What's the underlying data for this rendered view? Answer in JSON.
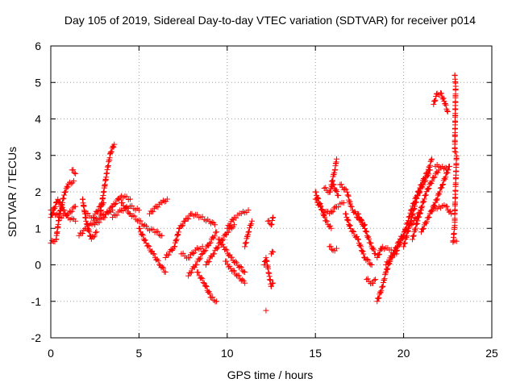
{
  "chart_data": {
    "type": "scatter",
    "title": "Day 105 of 2019, Sidereal Day-to-day VTEC variation (SDTVAR) for receiver p014",
    "xlabel": "GPS time / hours",
    "ylabel": "SDTVAR / TECUs",
    "xlim": [
      0,
      25
    ],
    "ylim": [
      -2,
      6
    ],
    "xticks": [
      0,
      5,
      10,
      15,
      20,
      25
    ],
    "yticks": [
      -2,
      -1,
      0,
      1,
      2,
      3,
      4,
      5,
      6
    ],
    "grid": true,
    "marker": "plus",
    "color": "#ff0000",
    "segments": [
      {
        "name": "arc-01",
        "points": [
          [
            0.0,
            0.6
          ],
          [
            0.3,
            0.7
          ],
          [
            0.5,
            1.4
          ],
          [
            0.8,
            2.0
          ],
          [
            1.0,
            2.2
          ],
          [
            1.3,
            2.3
          ]
        ]
      },
      {
        "name": "arc-02",
        "points": [
          [
            0.0,
            1.3
          ],
          [
            0.4,
            1.8
          ],
          [
            0.7,
            1.5
          ],
          [
            1.0,
            1.3
          ],
          [
            1.4,
            1.2
          ]
        ]
      },
      {
        "name": "arc-03",
        "points": [
          [
            0.0,
            1.5
          ],
          [
            0.5,
            1.3
          ],
          [
            1.0,
            1.4
          ],
          [
            1.4,
            1.6
          ]
        ]
      },
      {
        "name": "arc-04",
        "points": [
          [
            1.2,
            2.6
          ],
          [
            1.4,
            2.5
          ]
        ]
      },
      {
        "name": "arc-05",
        "points": [
          [
            1.6,
            0.8
          ],
          [
            2.0,
            1.0
          ],
          [
            2.5,
            1.2
          ],
          [
            3.0,
            1.4
          ],
          [
            3.5,
            1.5
          ]
        ]
      },
      {
        "name": "arc-06",
        "points": [
          [
            1.8,
            1.8
          ],
          [
            2.0,
            1.2
          ],
          [
            2.3,
            0.7
          ],
          [
            2.6,
            0.9
          ]
        ]
      },
      {
        "name": "arc-07",
        "points": [
          [
            2.0,
            1.4
          ],
          [
            2.4,
            1.3
          ],
          [
            2.8,
            1.6
          ],
          [
            3.0,
            1.7
          ]
        ]
      },
      {
        "name": "arc-08",
        "points": [
          [
            2.8,
            1.4
          ],
          [
            3.0,
            2.0
          ],
          [
            3.2,
            2.6
          ],
          [
            3.4,
            3.1
          ],
          [
            3.6,
            3.3
          ]
        ]
      },
      {
        "name": "arc-09",
        "points": [
          [
            2.5,
            1.1
          ],
          [
            3.0,
            1.3
          ],
          [
            3.5,
            1.6
          ],
          [
            4.0,
            1.9
          ],
          [
            4.5,
            1.8
          ]
        ]
      },
      {
        "name": "arc-10",
        "points": [
          [
            3.5,
            1.3
          ],
          [
            4.0,
            1.5
          ],
          [
            4.5,
            1.6
          ],
          [
            5.0,
            1.5
          ]
        ]
      },
      {
        "name": "arc-11",
        "points": [
          [
            4.0,
            1.7
          ],
          [
            4.5,
            1.4
          ],
          [
            5.0,
            1.2
          ],
          [
            5.5,
            1.0
          ],
          [
            6.0,
            0.9
          ],
          [
            6.3,
            0.8
          ]
        ]
      },
      {
        "name": "arc-12",
        "points": [
          [
            5.0,
            1.0
          ],
          [
            5.4,
            0.6
          ],
          [
            5.8,
            0.3
          ],
          [
            6.2,
            0.0
          ],
          [
            6.5,
            -0.2
          ]
        ]
      },
      {
        "name": "arc-13",
        "points": [
          [
            5.6,
            1.4
          ],
          [
            6.0,
            1.6
          ],
          [
            6.3,
            1.7
          ],
          [
            6.6,
            1.8
          ]
        ]
      },
      {
        "name": "arc-14",
        "points": [
          [
            6.5,
            0.2
          ],
          [
            7.0,
            0.5
          ],
          [
            7.3,
            1.0
          ],
          [
            7.6,
            1.2
          ]
        ]
      },
      {
        "name": "arc-15",
        "points": [
          [
            7.4,
            0.3
          ],
          [
            7.8,
            0.2
          ],
          [
            8.2,
            0.4
          ],
          [
            8.6,
            0.5
          ]
        ]
      },
      {
        "name": "arc-16",
        "points": [
          [
            7.6,
            1.2
          ],
          [
            8.0,
            1.4
          ],
          [
            8.5,
            1.3
          ],
          [
            9.0,
            1.2
          ],
          [
            9.3,
            1.1
          ]
        ]
      },
      {
        "name": "arc-17",
        "points": [
          [
            7.8,
            -0.3
          ],
          [
            8.2,
            0.0
          ],
          [
            8.6,
            0.3
          ],
          [
            9.0,
            0.6
          ],
          [
            9.4,
            0.9
          ]
        ]
      },
      {
        "name": "arc-18",
        "points": [
          [
            8.3,
            -0.2
          ],
          [
            8.7,
            -0.5
          ],
          [
            9.1,
            -0.9
          ],
          [
            9.4,
            -1.0
          ]
        ]
      },
      {
        "name": "arc-19",
        "points": [
          [
            8.8,
            0.0
          ],
          [
            9.2,
            0.3
          ],
          [
            9.6,
            0.6
          ],
          [
            10.0,
            0.9
          ],
          [
            10.4,
            1.1
          ]
        ]
      },
      {
        "name": "arc-20",
        "points": [
          [
            9.5,
            0.7
          ],
          [
            9.8,
            0.5
          ],
          [
            10.2,
            0.2
          ],
          [
            10.6,
            0.0
          ],
          [
            11.0,
            -0.2
          ]
        ]
      },
      {
        "name": "arc-21",
        "points": [
          [
            9.9,
            0.1
          ],
          [
            10.2,
            -0.1
          ],
          [
            10.6,
            -0.3
          ],
          [
            11.0,
            -0.5
          ]
        ]
      },
      {
        "name": "arc-22",
        "points": [
          [
            10.0,
            1.0
          ],
          [
            10.4,
            1.3
          ],
          [
            10.8,
            1.4
          ],
          [
            11.2,
            1.5
          ]
        ]
      },
      {
        "name": "arc-23",
        "points": [
          [
            11.0,
            0.5
          ],
          [
            11.2,
            0.9
          ],
          [
            11.4,
            1.2
          ]
        ]
      },
      {
        "name": "arc-24",
        "points": [
          [
            12.1,
            0.0
          ],
          [
            12.2,
            0.2
          ],
          [
            12.5,
            -0.6
          ],
          [
            12.6,
            -0.5
          ]
        ]
      },
      {
        "name": "arc-25",
        "points": [
          [
            12.3,
            1.2
          ],
          [
            12.5,
            1.1
          ],
          [
            12.6,
            1.3
          ]
        ]
      },
      {
        "name": "arc-26",
        "points": [
          [
            12.5,
            0.3
          ],
          [
            12.6,
            0.35
          ]
        ]
      },
      {
        "name": "arc-27",
        "points": [
          [
            12.2,
            -1.25
          ]
        ]
      },
      {
        "name": "arc-28",
        "points": [
          [
            15.0,
            1.8
          ],
          [
            15.4,
            1.5
          ],
          [
            15.8,
            1.4
          ],
          [
            16.2,
            1.6
          ],
          [
            16.6,
            1.7
          ]
        ]
      },
      {
        "name": "arc-29",
        "points": [
          [
            15.0,
            2.0
          ],
          [
            15.3,
            1.6
          ],
          [
            15.6,
            1.2
          ],
          [
            15.9,
            1.0
          ]
        ]
      },
      {
        "name": "arc-30",
        "points": [
          [
            15.5,
            2.1
          ],
          [
            15.8,
            2.0
          ],
          [
            16.0,
            2.2
          ],
          [
            16.3,
            1.9
          ]
        ]
      },
      {
        "name": "arc-31",
        "points": [
          [
            15.9,
            2.2
          ],
          [
            16.1,
            2.6
          ],
          [
            16.2,
            2.9
          ]
        ]
      },
      {
        "name": "arc-32",
        "points": [
          [
            15.8,
            0.5
          ],
          [
            16.0,
            0.4
          ],
          [
            16.2,
            0.45
          ]
        ]
      },
      {
        "name": "arc-33",
        "points": [
          [
            16.4,
            2.2
          ],
          [
            16.8,
            2.0
          ],
          [
            17.0,
            1.6
          ],
          [
            17.4,
            1.3
          ],
          [
            17.8,
            1.1
          ]
        ]
      },
      {
        "name": "arc-34",
        "points": [
          [
            16.7,
            1.4
          ],
          [
            17.0,
            1.0
          ],
          [
            17.4,
            0.7
          ],
          [
            17.8,
            0.2
          ],
          [
            18.2,
            0.0
          ]
        ]
      },
      {
        "name": "arc-35",
        "points": [
          [
            17.4,
            1.4
          ],
          [
            17.8,
            1.0
          ],
          [
            18.1,
            0.6
          ],
          [
            18.4,
            0.3
          ]
        ]
      },
      {
        "name": "arc-36",
        "points": [
          [
            17.9,
            -0.4
          ],
          [
            18.2,
            -0.5
          ],
          [
            18.4,
            -0.4
          ]
        ]
      },
      {
        "name": "arc-37",
        "points": [
          [
            18.5,
            -1.0
          ],
          [
            18.8,
            -0.6
          ],
          [
            19.0,
            -0.2
          ],
          [
            19.3,
            0.2
          ],
          [
            19.5,
            0.3
          ]
        ]
      },
      {
        "name": "arc-38",
        "points": [
          [
            18.5,
            0.2
          ],
          [
            18.8,
            0.5
          ],
          [
            19.2,
            0.4
          ],
          [
            19.6,
            0.3
          ]
        ]
      },
      {
        "name": "arc-39",
        "points": [
          [
            19.0,
            0.0
          ],
          [
            19.4,
            0.3
          ],
          [
            19.8,
            0.7
          ],
          [
            20.2,
            1.0
          ],
          [
            20.6,
            1.2
          ],
          [
            21.0,
            1.5
          ]
        ]
      },
      {
        "name": "arc-40",
        "points": [
          [
            19.5,
            0.3
          ],
          [
            20.0,
            0.8
          ],
          [
            20.5,
            1.6
          ],
          [
            21.0,
            2.2
          ],
          [
            21.4,
            2.6
          ],
          [
            21.6,
            2.9
          ]
        ]
      },
      {
        "name": "arc-41",
        "points": [
          [
            20.0,
            0.5
          ],
          [
            20.4,
            1.2
          ],
          [
            20.8,
            1.9
          ],
          [
            21.2,
            2.3
          ],
          [
            21.5,
            2.6
          ]
        ]
      },
      {
        "name": "arc-42",
        "points": [
          [
            20.5,
            0.7
          ],
          [
            20.9,
            1.4
          ],
          [
            21.3,
            2.0
          ],
          [
            21.7,
            2.4
          ],
          [
            22.0,
            2.6
          ]
        ]
      },
      {
        "name": "arc-43",
        "points": [
          [
            21.0,
            0.9
          ],
          [
            21.4,
            1.3
          ],
          [
            21.8,
            1.7
          ],
          [
            22.2,
            2.2
          ],
          [
            22.6,
            2.7
          ]
        ]
      },
      {
        "name": "arc-44",
        "points": [
          [
            21.8,
            2.7
          ],
          [
            22.2,
            2.7
          ],
          [
            22.5,
            2.6
          ]
        ]
      },
      {
        "name": "arc-45",
        "points": [
          [
            21.6,
            1.5
          ],
          [
            22.0,
            1.6
          ],
          [
            22.4,
            1.6
          ],
          [
            22.7,
            1.4
          ]
        ]
      },
      {
        "name": "arc-46",
        "points": [
          [
            21.7,
            4.4
          ],
          [
            21.9,
            4.7
          ],
          [
            22.1,
            4.7
          ],
          [
            22.3,
            4.5
          ],
          [
            22.5,
            4.2
          ]
        ]
      },
      {
        "name": "arc-47",
        "points": [
          [
            22.9,
            5.2
          ],
          [
            22.95,
            4.9
          ],
          [
            22.9,
            3.1
          ],
          [
            23.0,
            3.0
          ],
          [
            22.9,
            1.4
          ],
          [
            22.9,
            1.1
          ],
          [
            22.8,
            0.6
          ],
          [
            23.0,
            0.65
          ]
        ]
      }
    ]
  }
}
